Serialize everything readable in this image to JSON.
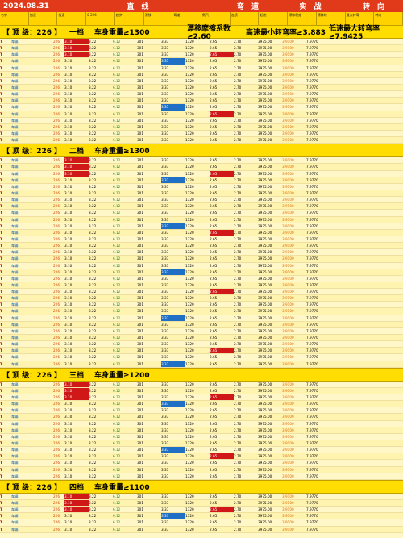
{
  "header": {
    "date": "2024.08.31",
    "segments": [
      {
        "label": "直  线",
        "width": 205
      },
      {
        "label": "弯  道",
        "width": 68
      },
      {
        "label": "实  战",
        "width": 87
      },
      {
        "label": "转  向",
        "width": 70
      }
    ],
    "columns": [
      "名字",
      "加速",
      "极速",
      "0-226",
      "起步",
      "漂移",
      "弯道",
      "氮气",
      "连喷",
      "起跑",
      "漂移稳定",
      "漂移转",
      "最大转弯",
      "转向"
    ]
  },
  "sections": [
    {
      "level": "【 顶 级：226 】",
      "gear": "一档",
      "cond": "车身重量≥1300",
      "k1": "漂移摩擦系数≥2.60",
      "k2": "高速最小转弯率≥3.883",
      "k3": "低速最大转弯率≥7.9425",
      "rows": 16
    },
    {
      "level": "【 顶 级：226 】",
      "gear": "二档",
      "cond": "车身重量≥1300",
      "k1": "",
      "k2": "",
      "k3": "",
      "rows": 32
    },
    {
      "level": "【 顶 级：226 】",
      "gear": "三档",
      "cond": "车身重量≥1200",
      "k1": "",
      "k2": "",
      "k3": "",
      "rows": 15
    },
    {
      "level": "【 顶 级：226 】",
      "gear": "四档",
      "cond": "车身重量≥1100",
      "k1": "",
      "k2": "",
      "k3": "",
      "rows": 6
    }
  ],
  "row_template": {
    "tag": "T",
    "name": "车辆",
    "power": "226",
    "values": [
      "3.10",
      "3.22",
      "6.12",
      "301",
      "3.37",
      "1320",
      "2.65",
      "2.70",
      "3975.00",
      "3.9100",
      "7.9770"
    ]
  }
}
